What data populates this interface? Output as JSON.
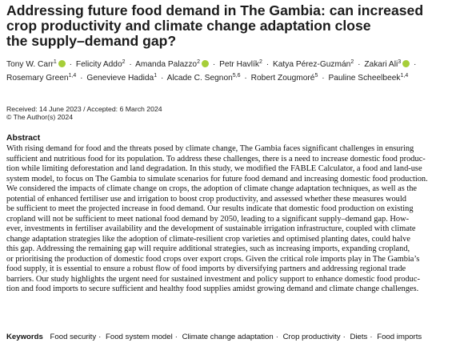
{
  "title_lines": [
    "Addressing future food demand in The Gambia: can increased",
    "crop productivity and climate change adaptation close",
    "the supply–demand gap?"
  ],
  "authors": [
    {
      "name": "Tony W. Carr",
      "aff": "1",
      "orcid": true
    },
    {
      "name": "Felicity Addo",
      "aff": "2",
      "orcid": false
    },
    {
      "name": "Amanda Palazzo",
      "aff": "2",
      "orcid": true
    },
    {
      "name": "Petr Havlík",
      "aff": "2",
      "orcid": false
    },
    {
      "name": "Katya Pérez-Guzmán",
      "aff": "2",
      "orcid": false
    },
    {
      "name": "Zakari Ali",
      "aff": "3",
      "orcid": true
    },
    {
      "name": "Rosemary Green",
      "aff": "1,4",
      "orcid": false
    },
    {
      "name": "Genevieve Hadida",
      "aff": "1",
      "orcid": false
    },
    {
      "name": "Alcade C. Segnon",
      "aff": "5,6",
      "orcid": false
    },
    {
      "name": "Robert Zougmoré",
      "aff": "5",
      "orcid": false
    },
    {
      "name": "Pauline Scheelbeek",
      "aff": "1,4",
      "orcid": false
    }
  ],
  "author_separator": "·",
  "dates": "Received: 14 June 2023 / Accepted: 6 March 2024",
  "copyright": "© The Author(s) 2024",
  "abstract": {
    "heading": "Abstract",
    "lines": [
      "With rising demand for food and the threats posed by climate change, The Gambia faces significant challenges in ensuring",
      "sufficient and nutritious food for its population. To address these challenges, there is a need to increase domestic food produc-",
      "tion while limiting deforestation and land degradation. In this study, we modified the FABLE Calculator, a food and land-use",
      "system model, to focus on The Gambia to simulate scenarios for future food demand and increasing domestic food production.",
      "We considered the impacts of climate change on crops, the adoption of climate change adaptation techniques, as well as the",
      "potential of enhanced fertiliser use and irrigation to boost crop productivity, and assessed whether these measures would",
      "be sufficient to meet the projected increase in food demand. Our results indicate that domestic food production on existing",
      "cropland will not be sufficient to meet national food demand by 2050, leading to a significant supply–demand gap. How-",
      "ever, investments in fertiliser availability and the development of sustainable irrigation infrastructure, coupled with climate",
      "change adaptation strategies like the adoption of climate-resilient crop varieties and optimised planting dates, could halve",
      "this gap. Addressing the remaining gap will require additional strategies, such as increasing imports, expanding cropland,",
      "or prioritising the production of domestic food crops over export crops. Given the critical role imports play in The Gambia’s",
      "food supply, it is essential to ensure a robust flow of food imports by diversifying partners and addressing regional trade",
      "barriers. Our study highlights the urgent need for sustained investment and policy support to enhance domestic food produc-",
      "tion and food imports to secure sufficient and healthy food supplies amidst growing demand and climate change challenges."
    ]
  },
  "keywords": {
    "label": "Keywords",
    "items": [
      "Food security",
      "Food system model",
      "Climate change adaptation",
      "Crop productivity",
      "Diets",
      "Food imports"
    ],
    "separator": "·"
  },
  "colors": {
    "orcid": "#a6ce39",
    "text": "#111111"
  }
}
